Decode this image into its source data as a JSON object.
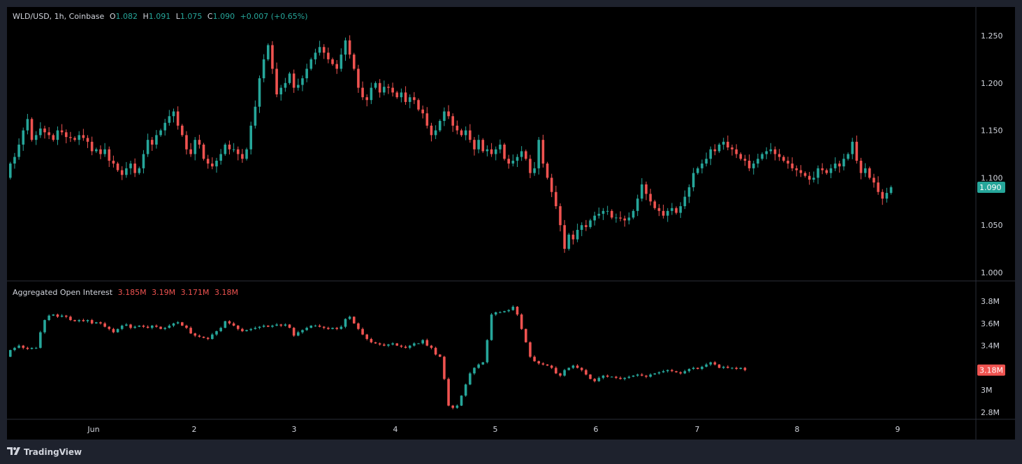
{
  "header": {
    "symbol": "WLD/USD, 1h, Coinbase",
    "o_label": "O",
    "o_value": "1.082",
    "h_label": "H",
    "h_value": "1.091",
    "l_label": "L",
    "l_value": "1.075",
    "c_label": "C",
    "c_value": "1.090",
    "change": "+0.007 (+0.65%)"
  },
  "indicator": {
    "name": "Aggregated Open Interest",
    "values": [
      "3.185M",
      "3.19M",
      "3.171M",
      "3.18M"
    ]
  },
  "price_axis": {
    "ticks": [
      "1.250",
      "1.200",
      "1.150",
      "1.100",
      "1.050",
      "1.000"
    ],
    "last_label": "1.090"
  },
  "oi_axis": {
    "ticks": [
      "3.8M",
      "3.6M",
      "3.4M",
      "3M",
      "2.8M"
    ],
    "last_label": "3.18M"
  },
  "time_axis": {
    "ticks": [
      "Jun",
      "2",
      "3",
      "4",
      "5",
      "6",
      "7",
      "8",
      "9"
    ]
  },
  "footer": {
    "brand": "TradingView"
  },
  "colors": {
    "up": "#26a69a",
    "down": "#ef5350",
    "background": "#000000",
    "page": "#1e222d"
  },
  "chart_data": [
    {
      "type": "candlestick",
      "title": "WLD/USD, 1h, Coinbase",
      "interval": "1h",
      "ylim": [
        1.0,
        1.25
      ],
      "x_ticks": [
        "Jun",
        "2",
        "3",
        "4",
        "5",
        "6",
        "7",
        "8",
        "9"
      ],
      "close": [
        1.115,
        1.122,
        1.135,
        1.15,
        1.162,
        1.14,
        1.145,
        1.152,
        1.148,
        1.145,
        1.14,
        1.15,
        1.148,
        1.143,
        1.142,
        1.14,
        1.145,
        1.142,
        1.138,
        1.128,
        1.13,
        1.125,
        1.13,
        1.118,
        1.115,
        1.108,
        1.103,
        1.11,
        1.115,
        1.105,
        1.11,
        1.125,
        1.14,
        1.135,
        1.145,
        1.15,
        1.158,
        1.165,
        1.17,
        1.155,
        1.145,
        1.13,
        1.125,
        1.14,
        1.135,
        1.12,
        1.115,
        1.112,
        1.118,
        1.125,
        1.135,
        1.13,
        1.13,
        1.125,
        1.12,
        1.13,
        1.155,
        1.175,
        1.205,
        1.225,
        1.24,
        1.215,
        1.188,
        1.195,
        1.2,
        1.21,
        1.195,
        1.198,
        1.205,
        1.215,
        1.225,
        1.232,
        1.238,
        1.232,
        1.225,
        1.22,
        1.215,
        1.23,
        1.245,
        1.23,
        1.215,
        1.195,
        1.185,
        1.182,
        1.195,
        1.2,
        1.19,
        1.196,
        1.195,
        1.19,
        1.185,
        1.19,
        1.18,
        1.185,
        1.182,
        1.172,
        1.168,
        1.155,
        1.145,
        1.15,
        1.16,
        1.17,
        1.165,
        1.155,
        1.15,
        1.145,
        1.15,
        1.14,
        1.13,
        1.14,
        1.128,
        1.13,
        1.125,
        1.13,
        1.135,
        1.12,
        1.115,
        1.118,
        1.122,
        1.128,
        1.12,
        1.105,
        1.11,
        1.14,
        1.115,
        1.1,
        1.085,
        1.07,
        1.05,
        1.025,
        1.04,
        1.035,
        1.045,
        1.05,
        1.048,
        1.055,
        1.06,
        1.062,
        1.065,
        1.065,
        1.058,
        1.058,
        1.057,
        1.055,
        1.058,
        1.065,
        1.078,
        1.093,
        1.083,
        1.075,
        1.068,
        1.065,
        1.06,
        1.065,
        1.068,
        1.063,
        1.07,
        1.08,
        1.09,
        1.105,
        1.11,
        1.115,
        1.12,
        1.13,
        1.128,
        1.135,
        1.138,
        1.132,
        1.13,
        1.125,
        1.12,
        1.118,
        1.11,
        1.115,
        1.12,
        1.125,
        1.128,
        1.13,
        1.125,
        1.122,
        1.118,
        1.115,
        1.11,
        1.108,
        1.105,
        1.102,
        1.098,
        1.1,
        1.11,
        1.108,
        1.105,
        1.11,
        1.115,
        1.112,
        1.12,
        1.125,
        1.138,
        1.118,
        1.105,
        1.11,
        1.1,
        1.095,
        1.085,
        1.078,
        1.084,
        1.09
      ],
      "last": 1.09
    },
    {
      "type": "candlestick",
      "title": "Aggregated Open Interest",
      "ylim": [
        2.8,
        3.8
      ],
      "units": "M",
      "close": [
        3.36,
        3.38,
        3.4,
        3.38,
        3.37,
        3.38,
        3.38,
        3.52,
        3.63,
        3.67,
        3.68,
        3.66,
        3.67,
        3.66,
        3.63,
        3.62,
        3.63,
        3.62,
        3.63,
        3.6,
        3.61,
        3.6,
        3.57,
        3.55,
        3.52,
        3.55,
        3.58,
        3.59,
        3.56,
        3.57,
        3.58,
        3.57,
        3.56,
        3.58,
        3.57,
        3.55,
        3.56,
        3.58,
        3.6,
        3.61,
        3.58,
        3.56,
        3.51,
        3.49,
        3.48,
        3.47,
        3.46,
        3.5,
        3.53,
        3.56,
        3.62,
        3.6,
        3.58,
        3.55,
        3.53,
        3.54,
        3.55,
        3.56,
        3.57,
        3.58,
        3.57,
        3.58,
        3.59,
        3.58,
        3.59,
        3.56,
        3.49,
        3.52,
        3.54,
        3.56,
        3.58,
        3.58,
        3.57,
        3.56,
        3.55,
        3.56,
        3.55,
        3.57,
        3.64,
        3.66,
        3.6,
        3.55,
        3.5,
        3.46,
        3.43,
        3.42,
        3.41,
        3.4,
        3.41,
        3.42,
        3.4,
        3.39,
        3.38,
        3.4,
        3.42,
        3.42,
        3.45,
        3.4,
        3.38,
        3.32,
        3.3,
        3.1,
        2.86,
        2.84,
        2.86,
        2.95,
        3.05,
        3.15,
        3.2,
        3.23,
        3.25,
        3.45,
        3.68,
        3.7,
        3.7,
        3.71,
        3.72,
        3.75,
        3.68,
        3.55,
        3.43,
        3.3,
        3.26,
        3.24,
        3.23,
        3.22,
        3.2,
        3.15,
        3.13,
        3.18,
        3.2,
        3.22,
        3.2,
        3.18,
        3.14,
        3.1,
        3.08,
        3.11,
        3.13,
        3.12,
        3.12,
        3.11,
        3.1,
        3.11,
        3.12,
        3.13,
        3.14,
        3.13,
        3.12,
        3.14,
        3.15,
        3.16,
        3.17,
        3.18,
        3.17,
        3.16,
        3.15,
        3.17,
        3.19,
        3.2,
        3.19,
        3.21,
        3.23,
        3.25,
        3.23,
        3.2,
        3.21,
        3.2,
        3.2,
        3.19,
        3.2,
        3.18
      ],
      "last": 3.18
    }
  ]
}
